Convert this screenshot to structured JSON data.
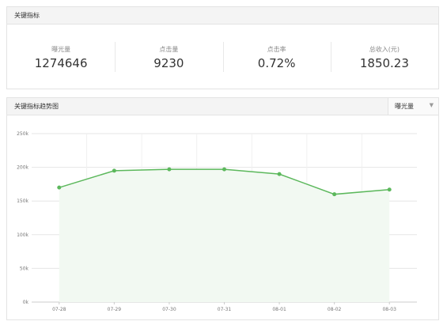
{
  "key_metrics": {
    "title": "关键指标",
    "items": [
      {
        "label": "曝光量",
        "value": "1274646"
      },
      {
        "label": "点击量",
        "value": "9230"
      },
      {
        "label": "点击率",
        "value": "0.72%"
      },
      {
        "label": "总收入(元)",
        "value": "1850.23"
      }
    ]
  },
  "trend": {
    "title": "关键指标趋势图",
    "selected_metric": "曝光量"
  },
  "colors": {
    "line": "#5cb85c",
    "area": "#f2f9f2",
    "grid": "#e6e6e6"
  },
  "chart_data": {
    "type": "line",
    "categories": [
      "07-28",
      "07-29",
      "07-30",
      "07-31",
      "08-01",
      "08-02",
      "08-03"
    ],
    "series": [
      {
        "values": [
          170000,
          195000,
          197000,
          197000,
          190000,
          160000,
          167000
        ]
      }
    ],
    "y_ticks": [
      "0k",
      "50k",
      "100k",
      "150k",
      "200k",
      "250k"
    ],
    "ylim": [
      0,
      250000
    ],
    "grid": true
  }
}
